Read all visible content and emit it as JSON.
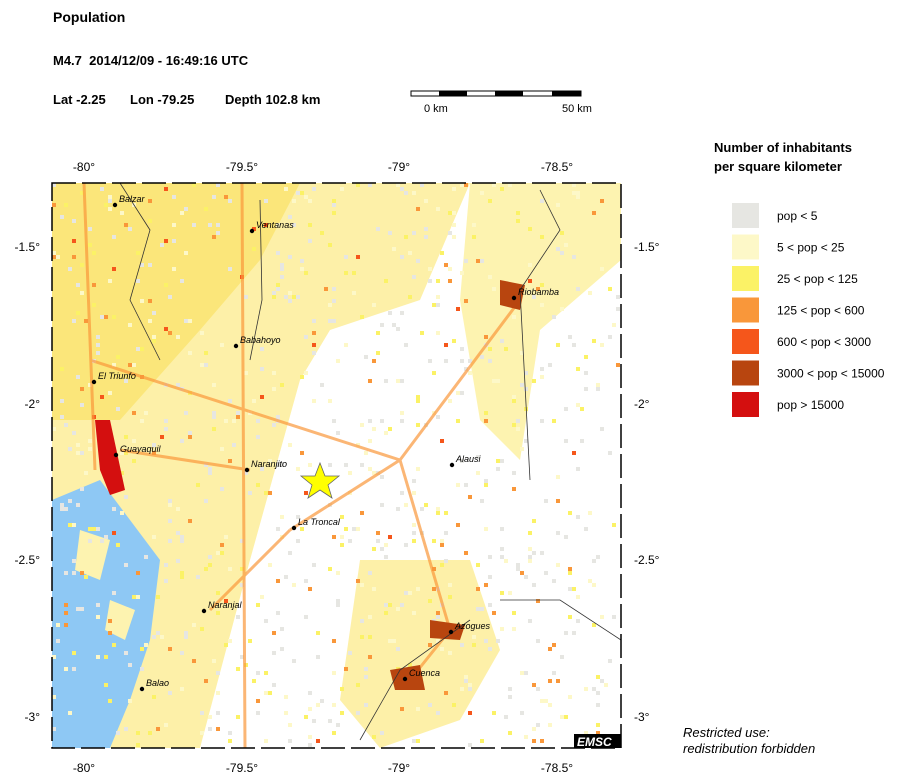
{
  "header": {
    "title": "Population",
    "event": "M4.7  2014/12/09 - 16:49:16 UTC",
    "lat": "Lat -2.25",
    "lon": "Lon -79.25",
    "depth": "Depth 102.8 km"
  },
  "scale": {
    "start": "0 km",
    "end": "50 km"
  },
  "map": {
    "lon_labels": [
      "-80°",
      "-79.5°",
      "-79°",
      "-78.5°"
    ],
    "lat_labels": [
      "-1.5°",
      "-2°",
      "-2.5°",
      "-3°"
    ],
    "cities": [
      "Balzar",
      "Ventanas",
      "Riobamba",
      "Babahoyo",
      "El Triunfo",
      "Guayaquil",
      "Alausi",
      "Naranjito",
      "La Troncal",
      "Naranjal",
      "Azogues",
      "Cuenca",
      "Balao"
    ],
    "logo": "EMSC"
  },
  "legend": {
    "title": [
      "Number of inhabitants",
      "per square kilometer"
    ],
    "items": [
      {
        "label": "pop < 5",
        "color": "#e6e6e2"
      },
      {
        "label": "5 < pop < 25",
        "color": "#fdf8c8"
      },
      {
        "label": "25 < pop < 125",
        "color": "#fbf266"
      },
      {
        "label": "125 < pop < 600",
        "color": "#f9973a"
      },
      {
        "label": "600 < pop < 3000",
        "color": "#f5561b"
      },
      {
        "label": "3000 < pop < 15000",
        "color": "#b8450f"
      },
      {
        "label": "pop > 15000",
        "color": "#d40f0f"
      }
    ]
  },
  "footer": [
    "Restricted use:",
    "redistribution forbidden"
  ]
}
